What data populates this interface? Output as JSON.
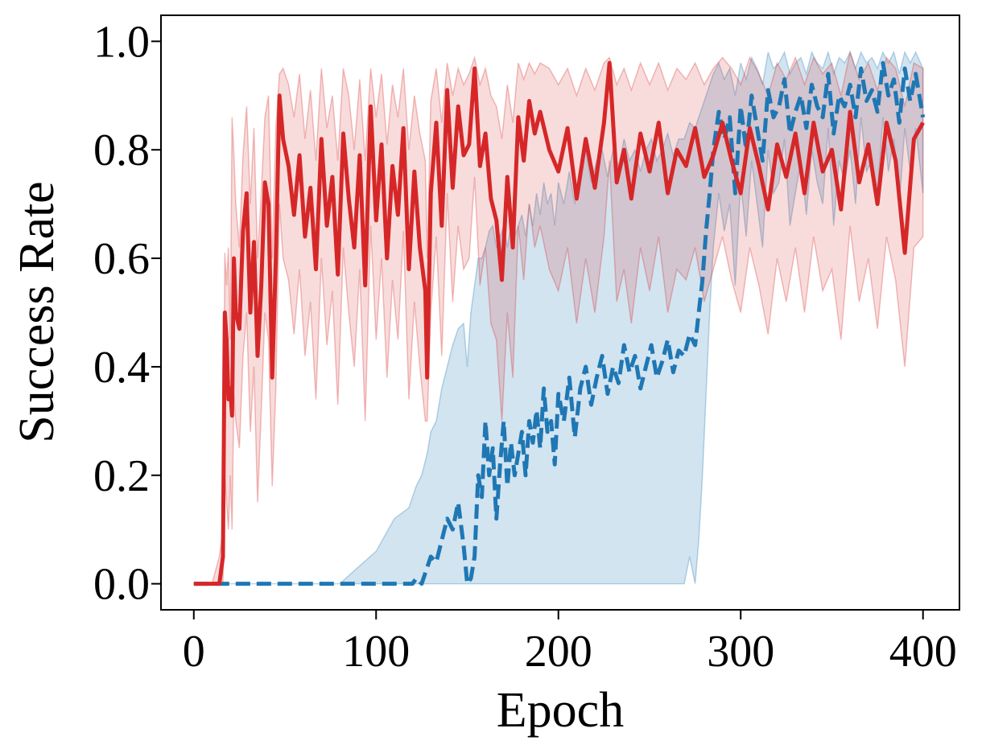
{
  "chart_data": {
    "type": "line",
    "title": "",
    "xlabel": "Epoch",
    "ylabel": "Success Rate",
    "xlim": [
      -18,
      420
    ],
    "ylim": [
      -0.048,
      1.048
    ],
    "xticks": [
      0,
      100,
      200,
      300,
      400
    ],
    "xtick_labels": [
      "0",
      "100",
      "200",
      "300",
      "400"
    ],
    "yticks": [
      0.0,
      0.2,
      0.4,
      0.6,
      0.8,
      1.0
    ],
    "ytick_labels": [
      "0.0",
      "0.2",
      "0.4",
      "0.6",
      "0.8",
      "1.0"
    ],
    "grid": false,
    "legend": null,
    "series": [
      {
        "color": "#d62728",
        "style": "solid",
        "x": [
          0,
          5,
          10,
          14,
          16,
          17,
          18,
          19,
          20,
          21,
          22,
          23,
          25,
          27,
          29,
          31,
          33,
          35,
          37,
          39,
          41,
          43,
          45,
          47,
          49,
          52,
          55,
          58,
          61,
          64,
          67,
          70,
          73,
          76,
          79,
          82,
          85,
          88,
          91,
          94,
          97,
          100,
          103,
          106,
          109,
          112,
          115,
          118,
          121,
          124,
          127,
          128,
          130,
          133,
          136,
          139,
          142,
          145,
          148,
          151,
          154,
          157,
          160,
          163,
          166,
          169,
          172,
          175,
          178,
          181,
          184,
          187,
          190,
          195,
          200,
          205,
          210,
          215,
          220,
          225,
          228,
          232,
          236,
          240,
          245,
          250,
          255,
          260,
          265,
          270,
          275,
          280,
          285,
          290,
          295,
          300,
          305,
          310,
          315,
          320,
          325,
          330,
          335,
          340,
          345,
          350,
          355,
          360,
          365,
          370,
          375,
          380,
          385,
          390,
          395,
          400
        ],
        "y": [
          0.0,
          0.0,
          0.0,
          0.0,
          0.05,
          0.5,
          0.45,
          0.34,
          0.36,
          0.31,
          0.6,
          0.5,
          0.47,
          0.65,
          0.72,
          0.5,
          0.63,
          0.42,
          0.55,
          0.74,
          0.7,
          0.38,
          0.6,
          0.9,
          0.82,
          0.77,
          0.68,
          0.79,
          0.64,
          0.73,
          0.58,
          0.82,
          0.66,
          0.75,
          0.57,
          0.83,
          0.71,
          0.62,
          0.79,
          0.55,
          0.88,
          0.67,
          0.81,
          0.6,
          0.77,
          0.68,
          0.84,
          0.58,
          0.76,
          0.62,
          0.54,
          0.38,
          0.72,
          0.85,
          0.66,
          0.91,
          0.73,
          0.88,
          0.79,
          0.81,
          0.95,
          0.77,
          0.83,
          0.71,
          0.67,
          0.56,
          0.75,
          0.62,
          0.86,
          0.78,
          0.89,
          0.83,
          0.87,
          0.8,
          0.76,
          0.84,
          0.71,
          0.82,
          0.73,
          0.85,
          0.96,
          0.74,
          0.8,
          0.71,
          0.83,
          0.76,
          0.85,
          0.72,
          0.8,
          0.77,
          0.84,
          0.75,
          0.79,
          0.85,
          0.78,
          0.72,
          0.84,
          0.77,
          0.69,
          0.81,
          0.75,
          0.83,
          0.72,
          0.85,
          0.76,
          0.8,
          0.69,
          0.87,
          0.74,
          0.81,
          0.7,
          0.85,
          0.78,
          0.61,
          0.82,
          0.85
        ],
        "band_upper": [
          0.0,
          0.0,
          0.0,
          0.05,
          0.1,
          0.61,
          0.55,
          0.62,
          0.45,
          0.86,
          0.79,
          0.7,
          0.62,
          0.79,
          0.88,
          0.7,
          0.84,
          0.6,
          0.72,
          0.86,
          0.9,
          0.6,
          0.84,
          0.94,
          0.95,
          0.92,
          0.86,
          0.94,
          0.82,
          0.91,
          0.78,
          0.95,
          0.84,
          0.9,
          0.78,
          0.95,
          0.9,
          0.8,
          0.93,
          0.78,
          0.95,
          0.86,
          0.94,
          0.81,
          0.92,
          0.86,
          0.95,
          0.8,
          0.9,
          0.83,
          0.78,
          0.6,
          0.89,
          0.95,
          0.85,
          0.96,
          0.9,
          0.95,
          0.92,
          0.94,
          0.97,
          0.92,
          0.95,
          0.9,
          0.88,
          0.82,
          0.92,
          0.85,
          0.96,
          0.93,
          0.96,
          0.94,
          0.96,
          0.95,
          0.92,
          0.95,
          0.9,
          0.95,
          0.91,
          0.96,
          0.97,
          0.92,
          0.95,
          0.91,
          0.96,
          0.92,
          0.96,
          0.91,
          0.95,
          0.93,
          0.96,
          0.92,
          0.95,
          0.97,
          0.95,
          0.92,
          0.97,
          0.94,
          0.9,
          0.96,
          0.93,
          0.97,
          0.92,
          0.97,
          0.94,
          0.96,
          0.9,
          0.98,
          0.93,
          0.96,
          0.91,
          0.97,
          0.95,
          0.88,
          0.96,
          0.95
        ],
        "band_lower": [
          0.0,
          0.0,
          0.0,
          0.0,
          0.0,
          0.2,
          0.15,
          0.1,
          0.2,
          0.1,
          0.35,
          0.3,
          0.25,
          0.42,
          0.5,
          0.28,
          0.4,
          0.15,
          0.32,
          0.5,
          0.45,
          0.18,
          0.36,
          0.7,
          0.6,
          0.56,
          0.46,
          0.58,
          0.42,
          0.52,
          0.34,
          0.6,
          0.44,
          0.54,
          0.33,
          0.62,
          0.5,
          0.4,
          0.58,
          0.3,
          0.66,
          0.45,
          0.6,
          0.38,
          0.56,
          0.45,
          0.65,
          0.34,
          0.52,
          0.4,
          0.3,
          0.3,
          0.5,
          0.64,
          0.42,
          0.72,
          0.52,
          0.66,
          0.58,
          0.6,
          0.75,
          0.55,
          0.62,
          0.48,
          0.45,
          0.3,
          0.5,
          0.38,
          0.66,
          0.56,
          0.7,
          0.62,
          0.66,
          0.58,
          0.54,
          0.62,
          0.48,
          0.6,
          0.5,
          0.64,
          0.78,
          0.52,
          0.58,
          0.48,
          0.62,
          0.54,
          0.64,
          0.5,
          0.58,
          0.56,
          0.62,
          0.52,
          0.58,
          0.64,
          0.56,
          0.5,
          0.62,
          0.55,
          0.46,
          0.6,
          0.52,
          0.62,
          0.5,
          0.64,
          0.54,
          0.58,
          0.45,
          0.66,
          0.52,
          0.6,
          0.47,
          0.64,
          0.56,
          0.4,
          0.62,
          0.64
        ]
      },
      {
        "color": "#1f77b4",
        "style": "dashed",
        "x": [
          0,
          20,
          40,
          60,
          80,
          100,
          110,
          118,
          120,
          122,
          125,
          128,
          130,
          133,
          136,
          139,
          142,
          145,
          148,
          150,
          152,
          154,
          156,
          158,
          160,
          162,
          164,
          166,
          168,
          170,
          172,
          174,
          176,
          178,
          180,
          182,
          184,
          186,
          188,
          190,
          192,
          194,
          196,
          198,
          200,
          203,
          206,
          209,
          212,
          215,
          218,
          221,
          224,
          227,
          230,
          233,
          236,
          239,
          242,
          245,
          248,
          251,
          254,
          257,
          260,
          263,
          266,
          269,
          272,
          275,
          277,
          279,
          281,
          283,
          285,
          288,
          291,
          294,
          297,
          300,
          303,
          306,
          309,
          312,
          315,
          318,
          321,
          324,
          327,
          330,
          333,
          336,
          339,
          342,
          345,
          348,
          351,
          354,
          357,
          360,
          363,
          366,
          369,
          372,
          375,
          378,
          381,
          384,
          387,
          390,
          393,
          396,
          400
        ],
        "y": [
          0.0,
          0.0,
          0.0,
          0.0,
          0.0,
          0.0,
          0.0,
          0.0,
          0.0,
          0.01,
          0.0,
          0.03,
          0.05,
          0.04,
          0.08,
          0.12,
          0.1,
          0.15,
          0.07,
          0.0,
          0.01,
          0.05,
          0.2,
          0.16,
          0.3,
          0.2,
          0.25,
          0.12,
          0.22,
          0.3,
          0.18,
          0.26,
          0.2,
          0.24,
          0.28,
          0.2,
          0.3,
          0.26,
          0.32,
          0.25,
          0.36,
          0.28,
          0.3,
          0.22,
          0.35,
          0.3,
          0.38,
          0.27,
          0.36,
          0.4,
          0.33,
          0.38,
          0.42,
          0.35,
          0.4,
          0.37,
          0.44,
          0.39,
          0.42,
          0.36,
          0.4,
          0.44,
          0.38,
          0.41,
          0.45,
          0.39,
          0.43,
          0.42,
          0.46,
          0.44,
          0.5,
          0.56,
          0.65,
          0.72,
          0.8,
          0.87,
          0.82,
          0.86,
          0.72,
          0.88,
          0.8,
          0.9,
          0.84,
          0.78,
          0.91,
          0.86,
          0.88,
          0.93,
          0.83,
          0.87,
          0.9,
          0.84,
          0.92,
          0.88,
          0.86,
          0.94,
          0.83,
          0.9,
          0.88,
          0.92,
          0.86,
          0.95,
          0.89,
          0.91,
          0.87,
          0.96,
          0.9,
          0.93,
          0.85,
          0.95,
          0.89,
          0.94,
          0.86
        ],
        "band_upper": [
          0.0,
          0.0,
          0.0,
          0.0,
          0.0,
          0.06,
          0.12,
          0.14,
          0.16,
          0.18,
          0.2,
          0.24,
          0.28,
          0.3,
          0.36,
          0.4,
          0.44,
          0.47,
          0.48,
          0.4,
          0.5,
          0.55,
          0.6,
          0.6,
          0.62,
          0.65,
          0.66,
          0.62,
          0.64,
          0.66,
          0.62,
          0.66,
          0.64,
          0.66,
          0.68,
          0.64,
          0.7,
          0.66,
          0.72,
          0.68,
          0.74,
          0.7,
          0.72,
          0.66,
          0.74,
          0.7,
          0.76,
          0.7,
          0.76,
          0.8,
          0.74,
          0.78,
          0.8,
          0.75,
          0.8,
          0.77,
          0.82,
          0.78,
          0.8,
          0.76,
          0.8,
          0.82,
          0.78,
          0.8,
          0.83,
          0.79,
          0.82,
          0.82,
          0.85,
          0.84,
          0.86,
          0.88,
          0.9,
          0.92,
          0.94,
          0.96,
          0.93,
          0.95,
          0.9,
          0.96,
          0.93,
          0.97,
          0.95,
          0.92,
          0.98,
          0.95,
          0.96,
          0.98,
          0.94,
          0.96,
          0.97,
          0.94,
          0.98,
          0.96,
          0.95,
          0.98,
          0.94,
          0.97,
          0.96,
          0.98,
          0.95,
          0.98,
          0.96,
          0.97,
          0.95,
          0.98,
          0.96,
          0.98,
          0.94,
          0.98,
          0.96,
          0.98,
          0.95
        ],
        "band_lower": [
          0.0,
          0.0,
          0.0,
          0.0,
          0.0,
          0.0,
          0.0,
          0.0,
          0.0,
          0.0,
          0.0,
          0.0,
          0.0,
          0.0,
          0.0,
          0.0,
          0.0,
          0.0,
          0.0,
          0.0,
          0.0,
          0.0,
          0.0,
          0.0,
          0.0,
          0.0,
          0.0,
          0.0,
          0.0,
          0.0,
          0.0,
          0.0,
          0.0,
          0.0,
          0.0,
          0.0,
          0.0,
          0.0,
          0.0,
          0.0,
          0.0,
          0.0,
          0.0,
          0.0,
          0.0,
          0.0,
          0.0,
          0.0,
          0.0,
          0.0,
          0.0,
          0.0,
          0.0,
          0.0,
          0.0,
          0.0,
          0.0,
          0.0,
          0.0,
          0.0,
          0.0,
          0.0,
          0.0,
          0.0,
          0.0,
          0.0,
          0.0,
          0.0,
          0.05,
          0.0,
          0.08,
          0.2,
          0.35,
          0.5,
          0.62,
          0.72,
          0.65,
          0.7,
          0.55,
          0.74,
          0.64,
          0.78,
          0.7,
          0.62,
          0.8,
          0.72,
          0.74,
          0.82,
          0.66,
          0.72,
          0.78,
          0.68,
          0.8,
          0.74,
          0.7,
          0.84,
          0.66,
          0.78,
          0.74,
          0.8,
          0.7,
          0.86,
          0.76,
          0.78,
          0.72,
          0.86,
          0.76,
          0.82,
          0.7,
          0.84,
          0.76,
          0.84,
          0.72
        ]
      }
    ]
  }
}
